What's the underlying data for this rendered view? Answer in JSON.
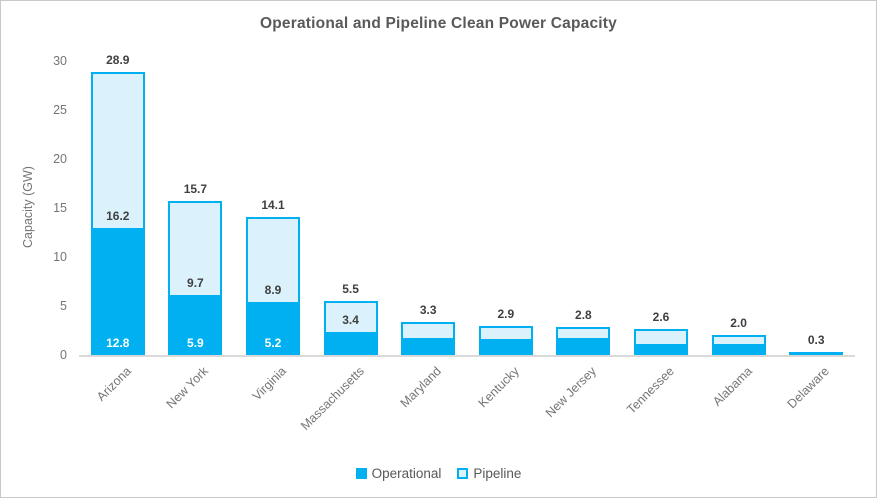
{
  "title": "Operational and Pipeline Clean Power Capacity",
  "colors": {
    "operational": "#00B0F0",
    "pipeline_fill": "#DBF2FC",
    "pipeline_border": "#00B0F0",
    "title_text": "#595959",
    "axis_text": "#757575",
    "data_label": "#3F3F3F",
    "axis_line": "#D9D9D9"
  },
  "y_axis": {
    "label": "Capacity (GW)"
  },
  "legend": {
    "items": [
      {
        "label": "Operational",
        "swatch": "operational"
      },
      {
        "label": "Pipeline",
        "swatch": "pipeline"
      }
    ]
  },
  "chart_data": {
    "type": "bar",
    "stacked": true,
    "title": "Operational and Pipeline Clean Power Capacity",
    "ylabel": "Capacity (GW)",
    "ylim": [
      0,
      30
    ],
    "yticks": [
      0,
      5,
      10,
      15,
      20,
      25,
      30
    ],
    "grid": false,
    "legend_position": "bottom",
    "categories": [
      "Arizona",
      "New York",
      "Virginia",
      "Massachusetts",
      "Maryland",
      "Kentucky",
      "New Jersey",
      "Tennessee",
      "Alabama",
      "Delaware"
    ],
    "series": [
      {
        "name": "Operational",
        "values": [
          12.8,
          5.9,
          5.2,
          2.1,
          1.5,
          1.4,
          1.5,
          0.9,
          0.9,
          0.3
        ]
      },
      {
        "name": "Pipeline",
        "values": [
          16.2,
          9.7,
          8.9,
          3.4,
          1.8,
          1.5,
          1.3,
          1.7,
          1.1,
          0
        ]
      }
    ],
    "totals": [
      28.9,
      15.7,
      14.1,
      5.5,
      3.3,
      2.9,
      2.8,
      2.6,
      2.0,
      0.3
    ],
    "total_labels": [
      "28.9",
      "15.7",
      "14.1",
      "5.5",
      "3.3",
      "2.9",
      "2.8",
      "2.6",
      "2.0",
      "0.3"
    ],
    "segment_labels": {
      "operational": [
        "12.8",
        "5.9",
        "5.2",
        "",
        "",
        "",
        "",
        "",
        "",
        ""
      ],
      "pipeline": [
        "16.2",
        "9.7",
        "8.9",
        "3.4",
        "",
        "",
        "",
        "",
        "",
        ""
      ]
    }
  }
}
